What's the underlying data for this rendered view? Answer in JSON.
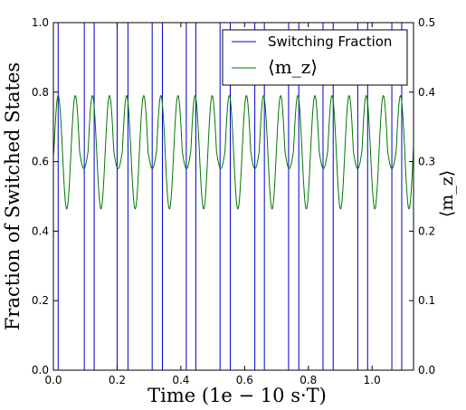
{
  "chart_data": {
    "type": "line",
    "xlabel": "Time (1e − 10 s·T)",
    "ylabel_left": "Fraction of Switched States",
    "ylabel_right": "⟨m_z⟩",
    "xlim": [
      0.0,
      1.13
    ],
    "ylim_left": [
      0.0,
      1.0
    ],
    "ylim_right": [
      0.0,
      0.5
    ],
    "x_ticks": [
      "0.0",
      "0.2",
      "0.4",
      "0.6",
      "0.8",
      "1.0"
    ],
    "y_left_ticks": [
      "0.0",
      "0.2",
      "0.4",
      "0.6",
      "0.8",
      "1.0"
    ],
    "y_right_ticks": [
      "0.0",
      "0.1",
      "0.2",
      "0.3",
      "0.4",
      "0.5"
    ],
    "grid": false,
    "legend_position": "top-right",
    "series": [
      {
        "name": "Switching Fraction",
        "axis": "left",
        "color": "#0000cc",
        "kind": "square-wave",
        "low": 0.0,
        "high": 1.0,
        "transitions_x": [
          0.0,
          0.015,
          0.097,
          0.128,
          0.2,
          0.234,
          0.31,
          0.342,
          0.417,
          0.447,
          0.523,
          0.555,
          0.632,
          0.662,
          0.738,
          0.77,
          0.846,
          0.878,
          0.955,
          0.986,
          1.062,
          1.093
        ]
      },
      {
        "name": "⟨m_z⟩",
        "axis": "right",
        "color": "#007700",
        "kind": "oscillation",
        "x_start": 0.0,
        "x_end": 1.13,
        "mean": 0.315,
        "max": 0.395,
        "min": 0.232,
        "deep_min": 0.232,
        "shallow_min": 0.29,
        "period": 0.0537,
        "phase_peak_x": 0.015
      }
    ]
  }
}
